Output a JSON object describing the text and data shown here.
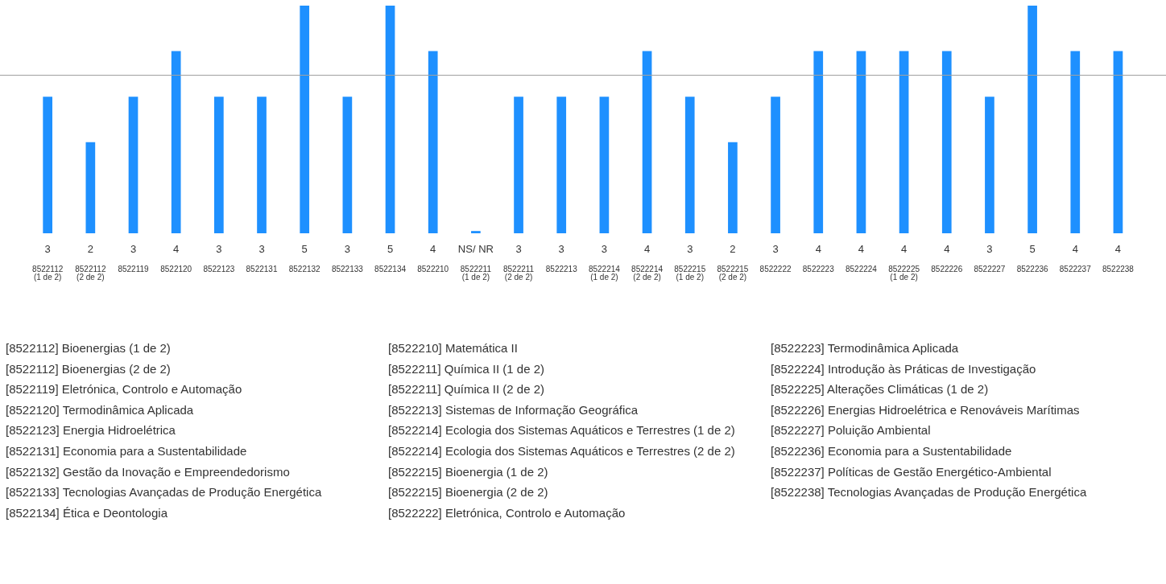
{
  "chart_data": {
    "type": "bar",
    "categories": [
      "8522112\n(1 de 2)",
      "8522112\n(2 de 2)",
      "8522119",
      "8522120",
      "8522123",
      "8522131",
      "8522132",
      "8522133",
      "8522134",
      "8522210",
      "8522211\n(1 de 2)",
      "8522211\n(2 de 2)",
      "8522213",
      "8522214\n(1 de 2)",
      "8522214\n(2 de 2)",
      "8522215\n(1 de 2)",
      "8522215\n(2 de 2)",
      "8522222",
      "8522223",
      "8522224",
      "8522225\n(1 de 2)",
      "8522226",
      "8522227",
      "8522236",
      "8522237",
      "8522238"
    ],
    "values": [
      3,
      2,
      3,
      4,
      3,
      3,
      5,
      3,
      5,
      4,
      0.05,
      3,
      3,
      3,
      4,
      3,
      2,
      3,
      4,
      4,
      4,
      4,
      3,
      5,
      4,
      4
    ],
    "value_labels": [
      "3",
      "2",
      "3",
      "4",
      "3",
      "3",
      "5",
      "3",
      "5",
      "4",
      "NS/ NR",
      "3",
      "3",
      "3",
      "4",
      "3",
      "2",
      "3",
      "4",
      "4",
      "4",
      "4",
      "3",
      "5",
      "4",
      "4"
    ],
    "color": "#1e90ff",
    "ylim": [
      0,
      5
    ],
    "tick_labels": "x",
    "ref_lines": [
      {
        "axis": "y",
        "value": 3.48,
        "color": "#a0a0a0"
      }
    ],
    "legend": false,
    "grid": false,
    "annotations": [
      "[8522112] Bioenergias (1 de 2)",
      "[8522112] Bioenergias (2 de 2)",
      "[8522119] Eletrónica, Controlo e Automação",
      "[8522120] Termodinâmica Aplicada",
      "[8522123] Energia Hidroelétrica",
      "[8522131] Economia para a Sustentabilidade",
      "[8522132] Gestão da Inovação e Empreendedorismo",
      "[8522133] Tecnologias Avançadas de Produção Energética",
      "[8522134] Ética e Deontologia",
      "[8522210] Matemática II",
      "[8522211] Química II (1 de 2)",
      "[8522211] Química II (2 de 2)",
      "[8522213] Sistemas de Informação Geográfica",
      "[8522214] Ecologia dos Sistemas Aquáticos e Terrestres (1 de 2)",
      "[8522214] Ecologia dos Sistemas Aquáticos e Terrestres (2 de 2)",
      "[8522215] Bioenergia (1 de 2)",
      "[8522215] Bioenergia (2 de 2)",
      "[8522222] Eletrónica, Controlo e Automação",
      "[8522223] Termodinâmica Aplicada",
      "[8522224] Introdução às Práticas de Investigação",
      "[8522225] Alterações Climáticas (1 de 2)",
      "[8522226] Energias Hidroelétrica e Renováveis Marítimas",
      "[8522227] Poluição Ambiental",
      "[8522236] Economia para a Sustentabilidade",
      "[8522237] Políticas de Gestão Energético-Ambiental",
      "[8522238] Tecnologias Avançadas de Produção Energética"
    ]
  }
}
